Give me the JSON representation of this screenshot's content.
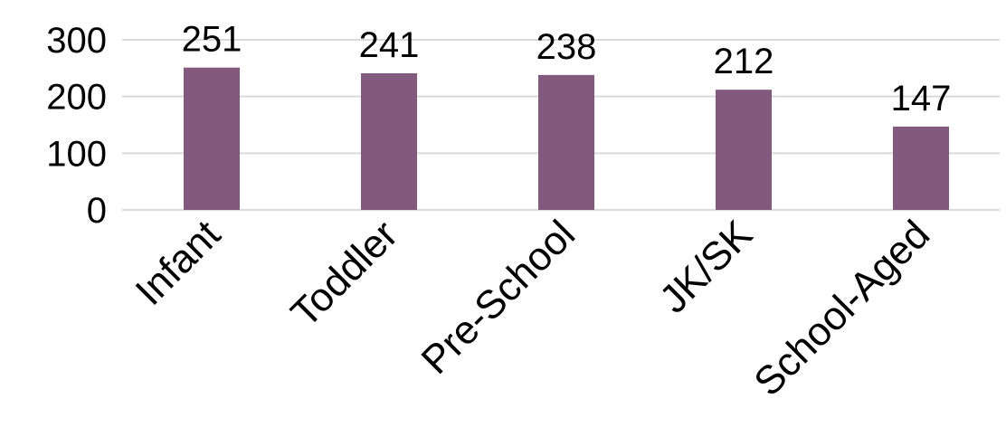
{
  "chart_data": {
    "type": "bar",
    "categories": [
      "Infant",
      "Toddler",
      "Pre-School",
      "JK/SK",
      "School-Aged"
    ],
    "values": [
      251,
      241,
      238,
      212,
      147
    ],
    "data_labels": [
      "251",
      "241",
      "238",
      "212",
      "147"
    ],
    "y_ticks": [
      0,
      100,
      200,
      300
    ],
    "y_tick_labels": [
      "0",
      "100",
      "200",
      "300"
    ],
    "ylim": [
      0,
      300
    ],
    "grid": true,
    "legend": "none",
    "bar_color": "#815a7e",
    "gridline_color": "#d9d9d9"
  }
}
